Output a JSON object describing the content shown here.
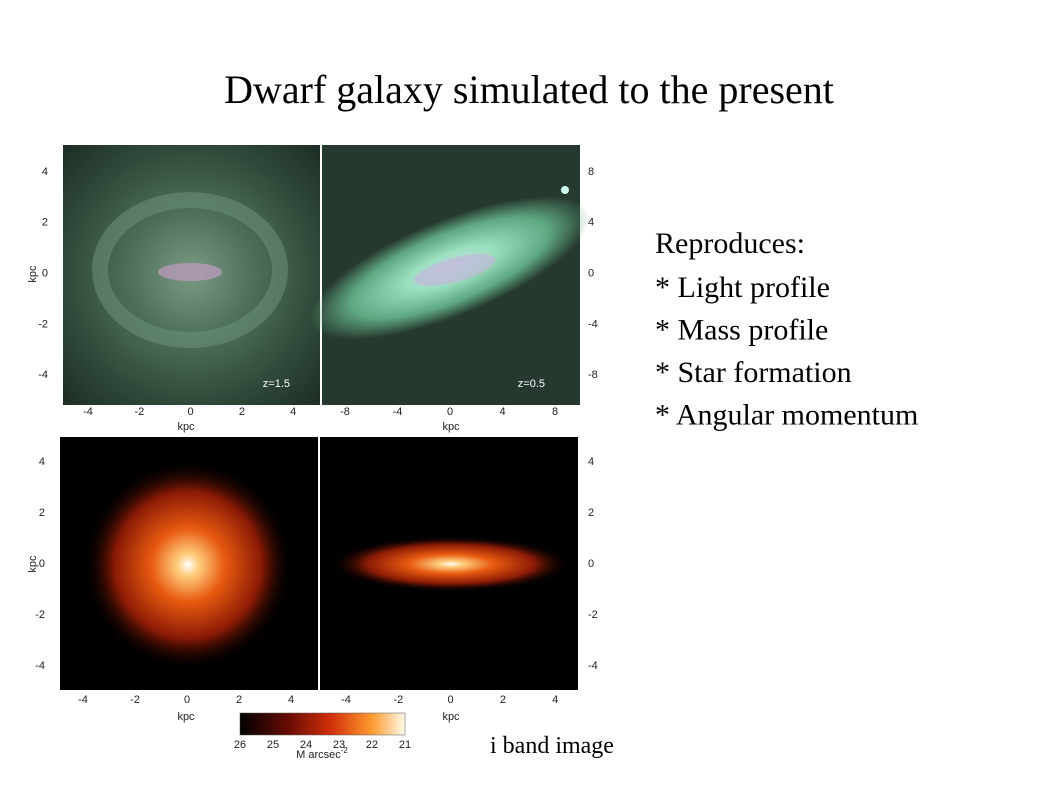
{
  "title": "Dwarf galaxy simulated to the present",
  "notes": {
    "heading": "Reproduces:",
    "items": [
      "* Light profile",
      "* Mass profile",
      "* Star formation",
      "* Angular momentum"
    ]
  },
  "panels": [
    {
      "x_ticks": [
        "-4",
        "-2",
        "0",
        "2",
        "4"
      ],
      "y_ticks": [
        "4",
        "2",
        "0",
        "-2",
        "-4"
      ],
      "x_label": "kpc",
      "y_label": "kpc",
      "tag": "z=1.5"
    },
    {
      "x_ticks": [
        "-8",
        "-4",
        "0",
        "4",
        "8"
      ],
      "y_ticks": [
        "8",
        "4",
        "0",
        "-4",
        "-8"
      ],
      "x_label": "kpc",
      "tag": "z=0.5"
    },
    {
      "x_ticks": [
        "-4",
        "-2",
        "0",
        "2",
        "4"
      ],
      "y_ticks": [
        "4",
        "2",
        "0",
        "-2",
        "-4"
      ],
      "x_label": "kpc",
      "y_label": "kpc"
    },
    {
      "x_ticks": [
        "-4",
        "-2",
        "0",
        "2",
        "4"
      ],
      "y_ticks": [
        "4",
        "2",
        "0",
        "-2",
        "-4"
      ],
      "x_label": "kpc"
    }
  ],
  "colorbar": {
    "ticks": [
      "26",
      "25",
      "24",
      "23",
      "22",
      "21"
    ],
    "unit": "M arcsec",
    "exponent": "-2"
  },
  "caption": "i band image"
}
